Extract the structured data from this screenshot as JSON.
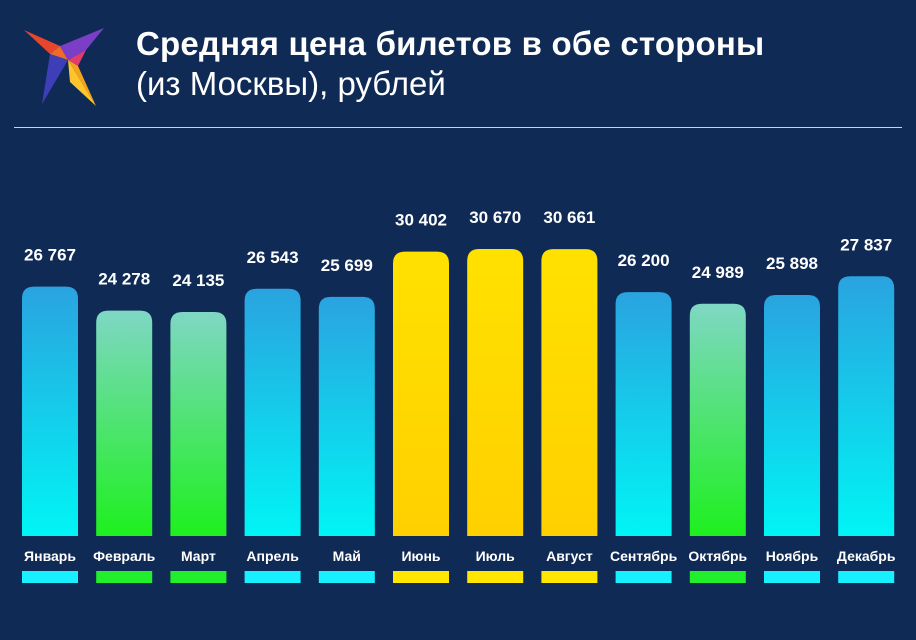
{
  "colors": {
    "background": "#0f2a55",
    "cold_top": "#2aa3e0",
    "cold_bottom": "#00f5f5",
    "green_top": "#7fd7c4",
    "green_bottom": "#1ef01e",
    "yellow_top": "#ffe100",
    "yellow_bottom": "#ffd000",
    "strip_cyan": "#18f0ff",
    "strip_green": "#22ef2c",
    "strip_yellow": "#ffe600"
  },
  "logo": {
    "icon": "bird-logo-icon"
  },
  "header": {
    "title": "Средняя цена билетов в обе стороны",
    "subtitle": "(из Москвы), рублей"
  },
  "chart_data": {
    "type": "bar",
    "title": "Средняя цена билетов в обе стороны",
    "subtitle": "(из Москвы), рублей",
    "categories": [
      "Январь",
      "Февраль",
      "Март",
      "Апрель",
      "Май",
      "Июнь",
      "Июль",
      "Август",
      "Сентябрь",
      "Октябрь",
      "Ноябрь",
      "Декабрь"
    ],
    "values": [
      26767,
      24278,
      24135,
      26543,
      25699,
      30402,
      30670,
      30661,
      26200,
      24989,
      25898,
      27837
    ],
    "value_labels": [
      "26 767",
      "24 278",
      "24 135",
      "26 543",
      "25 699",
      "30 402",
      "30 670",
      "30 661",
      "26 200",
      "24 989",
      "25 898",
      "27 837"
    ],
    "bar_styles": [
      "cold",
      "green",
      "green",
      "cold",
      "cold",
      "yellow",
      "yellow",
      "yellow",
      "cold",
      "green",
      "cold",
      "cold"
    ],
    "xlabel": "",
    "ylabel": "",
    "grid": false,
    "legend": "none"
  }
}
